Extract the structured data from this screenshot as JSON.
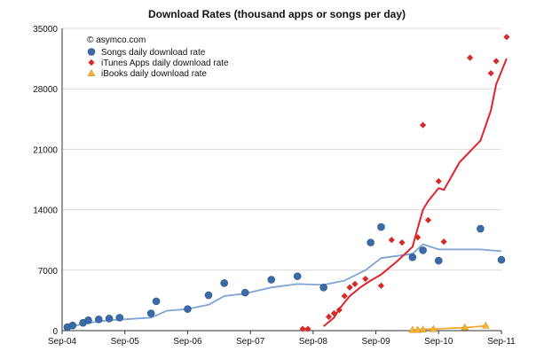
{
  "chart_data": {
    "type": "scatter",
    "title": "Download Rates (thousand apps or songs per day)",
    "copyright": "© asymco.com",
    "xlabel": "",
    "ylabel": "",
    "ylim": [
      0,
      35000
    ],
    "xlim": [
      "2004-09",
      "2011-09"
    ],
    "y_ticks": [
      "0",
      "7000",
      "14000",
      "21000",
      "28000",
      "35000"
    ],
    "y_tick_values": [
      0,
      7000,
      14000,
      21000,
      28000,
      35000
    ],
    "x_ticks": [
      "Sep-04",
      "Sep-05",
      "Sep-06",
      "Sep-07",
      "Sep-08",
      "Sep-09",
      "Sep-10",
      "Sep-11"
    ],
    "x_tick_values": [
      "2004-09",
      "2005-09",
      "2006-09",
      "2007-09",
      "2008-09",
      "2009-09",
      "2010-09",
      "2011-09"
    ],
    "grid": "horizontal",
    "legend_position": "top-left",
    "series": [
      {
        "name": "Songs daily download rate",
        "marker": "circle",
        "color": "#3b6aa6",
        "line_color": "#7fa3d4",
        "points": [
          {
            "x": "2004-10",
            "y": 400
          },
          {
            "x": "2004-11",
            "y": 600
          },
          {
            "x": "2005-01",
            "y": 900
          },
          {
            "x": "2005-02",
            "y": 1200
          },
          {
            "x": "2005-04",
            "y": 1300
          },
          {
            "x": "2005-06",
            "y": 1400
          },
          {
            "x": "2005-08",
            "y": 1500
          },
          {
            "x": "2006-02",
            "y": 2000
          },
          {
            "x": "2006-03",
            "y": 3400
          },
          {
            "x": "2006-09",
            "y": 2500
          },
          {
            "x": "2007-01",
            "y": 4100
          },
          {
            "x": "2007-04",
            "y": 5500
          },
          {
            "x": "2007-08",
            "y": 4400
          },
          {
            "x": "2008-01",
            "y": 5900
          },
          {
            "x": "2008-06",
            "y": 6300
          },
          {
            "x": "2008-11",
            "y": 5000
          },
          {
            "x": "2009-08",
            "y": 10200
          },
          {
            "x": "2009-10",
            "y": 12000
          },
          {
            "x": "2010-04",
            "y": 8500
          },
          {
            "x": "2010-06",
            "y": 9300
          },
          {
            "x": "2010-09",
            "y": 8100
          },
          {
            "x": "2011-05",
            "y": 11800
          },
          {
            "x": "2011-09",
            "y": 8200
          }
        ],
        "trend": [
          {
            "x": "2004-10",
            "y": 400
          },
          {
            "x": "2005-02",
            "y": 900
          },
          {
            "x": "2005-06",
            "y": 1200
          },
          {
            "x": "2006-02",
            "y": 1500
          },
          {
            "x": "2006-05",
            "y": 2300
          },
          {
            "x": "2006-09",
            "y": 2500
          },
          {
            "x": "2007-01",
            "y": 3000
          },
          {
            "x": "2007-04",
            "y": 4000
          },
          {
            "x": "2007-08",
            "y": 4300
          },
          {
            "x": "2008-01",
            "y": 5000
          },
          {
            "x": "2008-06",
            "y": 5400
          },
          {
            "x": "2008-11",
            "y": 5300
          },
          {
            "x": "2009-03",
            "y": 5800
          },
          {
            "x": "2009-07",
            "y": 7000
          },
          {
            "x": "2009-10",
            "y": 8400
          },
          {
            "x": "2010-04",
            "y": 8900
          },
          {
            "x": "2010-06",
            "y": 10000
          },
          {
            "x": "2010-09",
            "y": 9400
          },
          {
            "x": "2011-05",
            "y": 9400
          },
          {
            "x": "2011-09",
            "y": 9200
          }
        ]
      },
      {
        "name": "iTunes Apps daily download rate",
        "marker": "diamond",
        "color": "#d42a2a",
        "line_color": "#e0242c",
        "points": [
          {
            "x": "2008-07",
            "y": 200
          },
          {
            "x": "2008-08",
            "y": 200
          },
          {
            "x": "2008-12",
            "y": 1600
          },
          {
            "x": "2009-01",
            "y": 2000
          },
          {
            "x": "2009-02",
            "y": 2400
          },
          {
            "x": "2009-03",
            "y": 4000
          },
          {
            "x": "2009-04",
            "y": 5000
          },
          {
            "x": "2009-05",
            "y": 5400
          },
          {
            "x": "2009-07",
            "y": 6000
          },
          {
            "x": "2009-10",
            "y": 5200
          },
          {
            "x": "2009-12",
            "y": 10500
          },
          {
            "x": "2010-02",
            "y": 10200
          },
          {
            "x": "2010-05",
            "y": 10800
          },
          {
            "x": "2010-06",
            "y": 23800
          },
          {
            "x": "2010-07",
            "y": 12800
          },
          {
            "x": "2010-09",
            "y": 17300
          },
          {
            "x": "2010-10",
            "y": 10300
          },
          {
            "x": "2011-03",
            "y": 31600
          },
          {
            "x": "2011-07",
            "y": 29800
          },
          {
            "x": "2011-08",
            "y": 31200
          },
          {
            "x": "2011-10",
            "y": 34000
          }
        ],
        "trend": [
          {
            "x": "2008-11",
            "y": 500
          },
          {
            "x": "2009-01",
            "y": 1500
          },
          {
            "x": "2009-02",
            "y": 2500
          },
          {
            "x": "2009-04",
            "y": 4000
          },
          {
            "x": "2009-06",
            "y": 5000
          },
          {
            "x": "2009-08",
            "y": 5800
          },
          {
            "x": "2009-10",
            "y": 6500
          },
          {
            "x": "2010-01",
            "y": 8000
          },
          {
            "x": "2010-04",
            "y": 9700
          },
          {
            "x": "2010-06",
            "y": 14000
          },
          {
            "x": "2010-07",
            "y": 15000
          },
          {
            "x": "2010-09",
            "y": 16500
          },
          {
            "x": "2010-10",
            "y": 16300
          },
          {
            "x": "2011-01",
            "y": 19500
          },
          {
            "x": "2011-05",
            "y": 22000
          },
          {
            "x": "2011-07",
            "y": 25500
          },
          {
            "x": "2011-08",
            "y": 28500
          },
          {
            "x": "2011-10",
            "y": 31500
          }
        ]
      },
      {
        "name": "iBooks daily download rate",
        "marker": "triangle",
        "color": "#f3b23a",
        "line_color": "#f0aa2c",
        "points": [
          {
            "x": "2010-04",
            "y": 100
          },
          {
            "x": "2010-05",
            "y": 100
          },
          {
            "x": "2010-06",
            "y": 150
          },
          {
            "x": "2010-08",
            "y": 200
          },
          {
            "x": "2011-02",
            "y": 400
          },
          {
            "x": "2011-06",
            "y": 600
          }
        ],
        "trend": [
          {
            "x": "2010-04",
            "y": 100
          },
          {
            "x": "2010-06",
            "y": 150
          },
          {
            "x": "2010-08",
            "y": 200
          },
          {
            "x": "2011-02",
            "y": 350
          },
          {
            "x": "2011-06",
            "y": 550
          }
        ]
      }
    ]
  }
}
